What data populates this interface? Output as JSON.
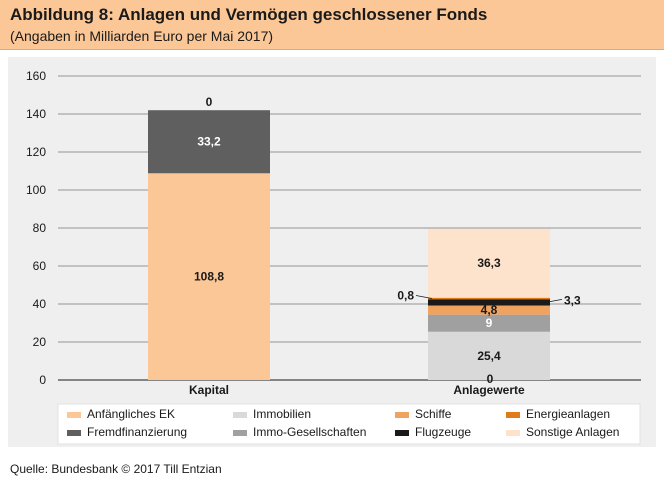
{
  "header": {
    "title": "Abbildung 8: Anlagen und Vermögen geschlossener Fonds",
    "subtitle": "(Angaben in Milliarden Euro per Mai 2017)"
  },
  "source": "Quelle: Bundesbank © 2017 Till Entzian",
  "colors": {
    "header_bg": "#fbc796",
    "plot_bg": "#f0efef"
  },
  "chart_data": {
    "type": "bar",
    "stacked": true,
    "categories": [
      "Kapital",
      "Anlagewerte"
    ],
    "ylim": [
      0,
      160
    ],
    "yticks": [
      0,
      20,
      40,
      60,
      80,
      100,
      120,
      140,
      160
    ],
    "grid": true,
    "legend_position": "bottom",
    "series": [
      {
        "name": "Anfängliches EK",
        "color": "#fbc796",
        "values": [
          108.8,
          null
        ],
        "labels": [
          "108,8",
          ""
        ],
        "label_color": "#1a1a1a"
      },
      {
        "name": "Fremdfinanzierung",
        "color": "#5f5f5f",
        "values": [
          33.2,
          null
        ],
        "labels": [
          "33,2",
          ""
        ],
        "label_color": "#ffffff"
      },
      {
        "name": "Sonstige Anlagen",
        "color": "#fde3cb",
        "values": [
          0,
          null
        ],
        "labels": [
          "0",
          ""
        ],
        "label_color": "#1a1a1a"
      },
      {
        "name": "Immobilien",
        "color": "#d9d9d9",
        "values": [
          null,
          25.4
        ],
        "labels": [
          "",
          "25,4"
        ],
        "label_color": "#1a1a1a"
      },
      {
        "name": "Immo-Gesellschaften",
        "color": "#a0a0a0",
        "values": [
          null,
          9
        ],
        "labels": [
          "",
          "9"
        ],
        "label_color": "#ffffff"
      },
      {
        "name": "Schiffe",
        "color": "#f0a35e",
        "values": [
          null,
          4.8
        ],
        "labels": [
          "",
          "4,8"
        ],
        "label_color": "#1a1a1a"
      },
      {
        "name": "Flugzeuge",
        "color": "#1a1a1a",
        "values": [
          null,
          3.3
        ],
        "labels": [
          "",
          "3,3"
        ],
        "label_color": "#1a1a1a"
      },
      {
        "name": "Energieanlagen",
        "color": "#e07b1a",
        "values": [
          null,
          0.8
        ],
        "labels": [
          "",
          "0,8"
        ],
        "label_color": "#1a1a1a"
      },
      {
        "name": "Sonstige Anlagen",
        "color": "#fde3cb",
        "values": [
          null,
          36.3
        ],
        "labels": [
          "",
          "36,3"
        ],
        "label_color": "#1a1a1a"
      }
    ],
    "extra_labels": [
      {
        "category": "Anlagewerte",
        "text": "0"
      }
    ],
    "legend": [
      {
        "name": "Anfängliches EK",
        "color": "#fbc796"
      },
      {
        "name": "Immobilien",
        "color": "#d9d9d9"
      },
      {
        "name": "Schiffe",
        "color": "#f0a35e"
      },
      {
        "name": "Energieanlagen",
        "color": "#e07b1a"
      },
      {
        "name": "Fremdfinanzierung",
        "color": "#5f5f5f"
      },
      {
        "name": "Immo-Gesellschaften",
        "color": "#a0a0a0"
      },
      {
        "name": "Flugzeuge",
        "color": "#1a1a1a"
      },
      {
        "name": "Sonstige Anlagen",
        "color": "#fde3cb"
      }
    ]
  }
}
